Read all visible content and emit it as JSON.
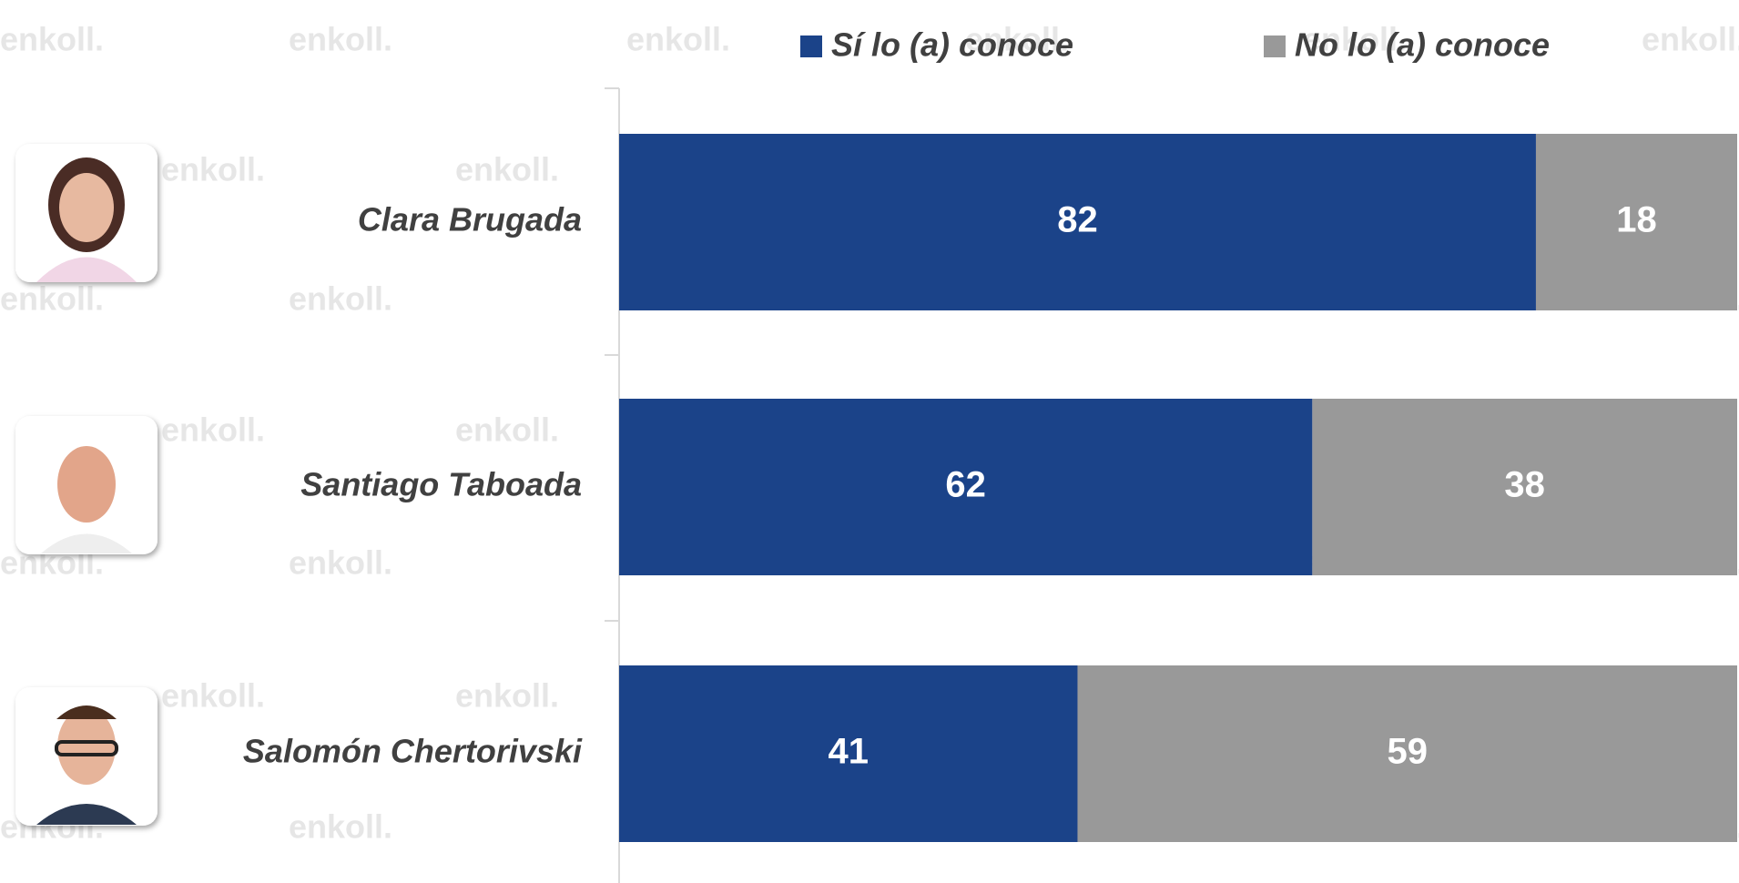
{
  "chart_data": {
    "type": "stacked_bar_horizontal",
    "categories": [
      "Clara Brugada",
      "Santiago Taboada",
      "Salomón Chertorivski"
    ],
    "series": [
      {
        "name": "Sí lo (a) conoce",
        "color": "#1b4389",
        "values": [
          82,
          62,
          41
        ]
      },
      {
        "name": "No lo (a) conoce",
        "color": "#999999",
        "values": [
          18,
          38,
          59
        ]
      }
    ],
    "xlim": [
      0,
      100
    ],
    "legend": "top",
    "watermark": "enkoll."
  }
}
